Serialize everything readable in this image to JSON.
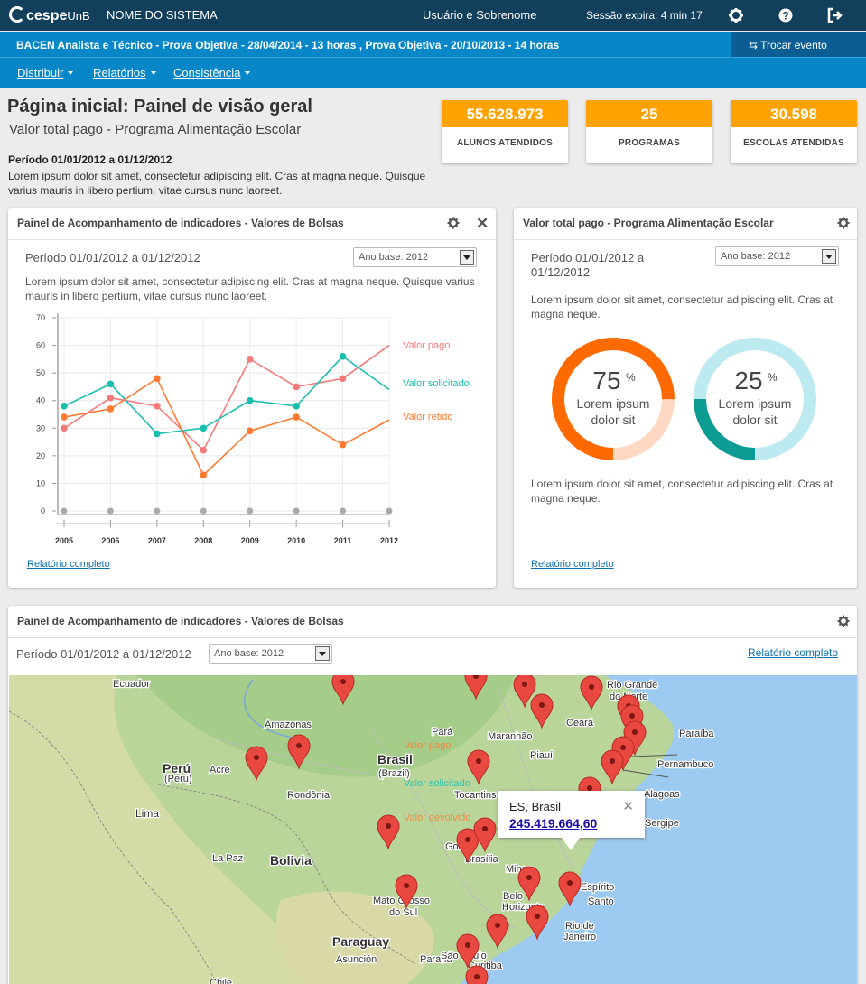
{
  "topbar": {
    "logo": "cespe",
    "logo_suffix": "UnB",
    "system_name": "NOME DO SISTEMA",
    "user_name": "Usuário e Sobrenome",
    "session": "Sessão expira: 4 min 17",
    "icons": [
      "gear-icon",
      "help-icon",
      "logout-icon"
    ]
  },
  "eventbar": {
    "event": "BACEN Analista e Técnico - Prova Objetiva - 28/04/2014 - 13 horas , Prova Objetiva - 20/10/2013 - 14 horas",
    "swap_label": "Trocar evento"
  },
  "nav": {
    "items": [
      "Distribuir",
      "Relatórios",
      "Consistência"
    ]
  },
  "page": {
    "title": "Página inicial: Painel de visão geral",
    "subtitle": "Valor total pago - Programa Alimentação Escolar",
    "period": "Período 01/01/2012 a 01/12/2012",
    "description": "Lorem ipsum dolor sit amet, consectetur adipiscing elit. Cras at magna neque. Quisque varius mauris in libero pertium, vitae cursus nunc laoreet."
  },
  "stats": [
    {
      "value": "55.628.973",
      "label": "ALUNOS ATENDIDOS"
    },
    {
      "value": "25",
      "label": "PROGRAMAS"
    },
    {
      "value": "30.598",
      "label": "ESCOLAS ATENDIDAS"
    }
  ],
  "panel_line": {
    "title": "Painel de Acompanhamento de indicadores - Valores de Bolsas",
    "period": "Período 01/01/2012 a 01/12/2012",
    "select": "Ano base: 2012",
    "description": "Lorem ipsum dolor sit amet, consectetur adipiscing elit. Cras at magna neque. Quisque varius mauris in libero pertium, vitae cursus nunc laoreet.",
    "link": "Relatório completo"
  },
  "panel_donut": {
    "title": "Valor total pago - Programa Alimentação Escolar",
    "period": "Período 01/01/2012 a 01/12/2012",
    "select": "Ano base: 2012",
    "description1": "Lorem ipsum dolor sit amet, consectetur adipiscing elit. Cras at magna neque.",
    "description2": "Lorem ipsum dolor sit amet, consectetur adipiscing elit. Cras at magna neque.",
    "link": "Relatório completo",
    "donuts": [
      {
        "percent": 75,
        "value_text": "75",
        "unit": "%",
        "line1": "Lorem ipsum",
        "line2": "dolor sit",
        "color": "#ff6a00",
        "track": "#ffd8c4"
      },
      {
        "percent": 25,
        "value_text": "25",
        "unit": "%",
        "line1": "Lorem ipsum",
        "line2": "dolor sit",
        "color": "#0d9c94",
        "track": "#bdeaf0"
      }
    ]
  },
  "panel_map": {
    "title": "Painel de Acompanhamento de indicadores - Valores de Bolsas",
    "period": "Período 01/01/2012 a 01/12/2012",
    "select": "Ano base: 2012",
    "link": "Relatório completo",
    "legend": [
      "Valor pago",
      "Valor solicitado",
      "Valor devolvido"
    ],
    "labels": [
      "Ecuador",
      "Amazonas",
      "Perú",
      "(Peru)",
      "Acre",
      "Rondônia",
      "Lima",
      "La Paz",
      "Bolivia",
      "Pará",
      "Maranhão",
      "Piauí",
      "Brasil",
      "(Brazil)",
      "Tocantins",
      "Goiás",
      "Brasília",
      "Mato Grosso",
      "do Sul",
      "Paraguay",
      "Asunción",
      "Paraná",
      "São Paulo",
      "Curitiba",
      "Chile",
      "Ceará",
      "Rio Grande",
      "do Norte",
      "Paraíba",
      "Pernambuco",
      "Alagoas",
      "Sergipe",
      "Minas",
      "Belo",
      "Horizonte",
      "Espírito",
      "Santo",
      "Rio de",
      "Janeiro"
    ],
    "tooltip": {
      "name": "ES, Brasil",
      "value": "245.419.664,60"
    }
  },
  "chart_data": {
    "type": "line",
    "x": [
      2005,
      2006,
      2007,
      2008,
      2009,
      2010,
      2011,
      2012
    ],
    "ylim": [
      0,
      70
    ],
    "yticks": [
      0,
      10,
      20,
      30,
      40,
      50,
      60,
      70
    ],
    "grid": true,
    "legend_position": "right",
    "series": [
      {
        "name": "Valor pago",
        "color": "#f47a7a",
        "values": [
          30,
          41,
          38,
          22,
          55,
          45,
          48,
          60
        ]
      },
      {
        "name": "Valor solicitado",
        "color": "#19bfae",
        "values": [
          38,
          46,
          28,
          30,
          40,
          38,
          56,
          44
        ]
      },
      {
        "name": "Valor retido",
        "color": "#ff7a30",
        "values": [
          34,
          37,
          48,
          13,
          29,
          34,
          24,
          33
        ]
      }
    ],
    "baseline_points": [
      0,
      0,
      0,
      0,
      0,
      0,
      0,
      0
    ]
  }
}
